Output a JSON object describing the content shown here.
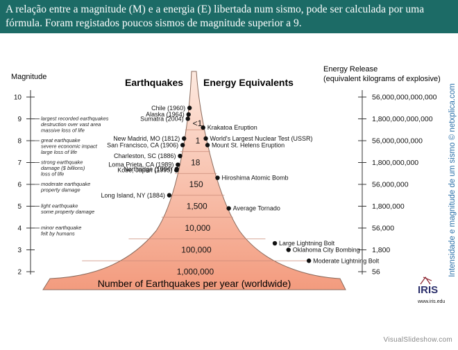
{
  "slide": {
    "caption": "A relação entre a magnitude (M) e a energia (E) libertada num sismo, pode ser calculada por uma fórmula. Foram registados poucos sismos de magnitude superior a 9.",
    "footer": "VisualSlideshow.com"
  },
  "figure": {
    "title_left": "Earthquakes",
    "title_right": "Energy Equivalents",
    "magnitude_heading": "Magnitude",
    "energy_heading_1": "Energy Release",
    "energy_heading_2": "(equivalent kilograms of explosive)",
    "magnitudes": [
      "10",
      "9",
      "8",
      "7",
      "6",
      "5",
      "4",
      "3",
      "2"
    ],
    "descriptions": [
      {
        "mag": 9,
        "lines": [
          "largest recorded earthquakes",
          "destruction over vast area",
          "massive loss of life"
        ]
      },
      {
        "mag": 8,
        "lines": [
          "great earthquake",
          "severe economic impact",
          "large loss of life"
        ]
      },
      {
        "mag": 7,
        "lines": [
          "strong earthquake",
          "damage ($ billions)",
          "loss of life"
        ]
      },
      {
        "mag": 6,
        "lines": [
          "moderate earthquake",
          "property damage"
        ]
      },
      {
        "mag": 5,
        "lines": [
          "light earthquake",
          "some property damage"
        ]
      },
      {
        "mag": 4,
        "lines": [
          "minor earthquake",
          "felt by humans"
        ]
      }
    ],
    "energy_values": [
      "56,000,000,000,000",
      "1,800,000,000,000",
      "56,000,000,000",
      "1,800,000,000",
      "56,000,000",
      "1,800,000",
      "56,000",
      "1,800",
      "56"
    ],
    "earthquakes": [
      {
        "label": "Chile (1960)",
        "mag": 9.5
      },
      {
        "label": "Alaska (1964)",
        "mag": 9.2
      },
      {
        "label": "Sumatra (2004)",
        "mag": 9.1
      },
      {
        "label": "New Madrid, MO (1812)",
        "mag": 8.1
      },
      {
        "label": "San Francisco, CA (1906)",
        "mag": 7.8
      },
      {
        "label": "Charleston, SC (1886)",
        "mag": 7.3
      },
      {
        "label": "Loma Prieta, CA (1989)",
        "mag": 6.9
      },
      {
        "label": "Kobe, Japan (1995)",
        "mag": 6.9
      },
      {
        "label": "Northridge (1994)",
        "mag": 6.7
      },
      {
        "label": "Long Island, NY (1884)",
        "mag": 5.5
      }
    ],
    "energy_events": [
      {
        "label": "Krakatoa Eruption",
        "mag": 8.6
      },
      {
        "label": "World's Largest Nuclear Test (USSR)",
        "mag": 8.1
      },
      {
        "label": "Mount St. Helens Eruption",
        "mag": 7.8
      },
      {
        "label": "Hiroshima Atomic Bomb",
        "mag": 6.3
      },
      {
        "label": "Average Tornado",
        "mag": 4.9
      },
      {
        "label": "Large Lightning Bolt",
        "mag": 3.3
      },
      {
        "label": "Oklahoma City Bombing",
        "mag": 3.0
      },
      {
        "label": "Moderate Lightning Bolt",
        "mag": 2.5
      }
    ],
    "counts": [
      {
        "label": "<1",
        "mag": 8.8
      },
      {
        "label": "1",
        "mag": 8.0
      },
      {
        "label": "18",
        "mag": 7.0
      },
      {
        "label": "150",
        "mag": 6.0
      },
      {
        "label": "1,500",
        "mag": 5.0
      },
      {
        "label": "10,000",
        "mag": 4.0
      },
      {
        "label": "100,000",
        "mag": 3.0
      },
      {
        "label": "1,000,000",
        "mag": 2.0
      }
    ],
    "bottom_label": "Number of Earthquakes per year (worldwide)",
    "credit_vertical": "Intensidade e magnitude de um sismo © netxplica.com",
    "logo_text": "IRIS",
    "logo_url": "www.iris.edu",
    "colors": {
      "banner": "#1c6b66",
      "fill_top": "#fde9df",
      "fill_bottom": "#f39b7e",
      "outline": "#8a6a5c",
      "credit": "#2a6fa8"
    }
  }
}
